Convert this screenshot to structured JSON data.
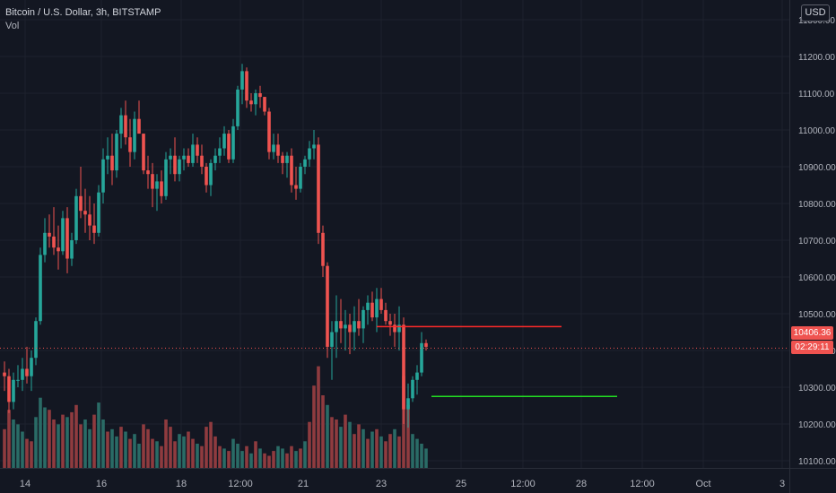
{
  "header": {
    "title": "Bitcoin / U.S. Dollar, 3h, BITSTAMP",
    "volume_label": "Vol",
    "currency": "USD"
  },
  "price_axis": {
    "current_price": "10406.36",
    "countdown": "02:29:11",
    "tag_color": "#ef5350"
  },
  "colors": {
    "background": "#131722",
    "grid": "#1e222d",
    "up": "#26a69a",
    "down": "#ef5350",
    "volume_up": "#2a6b66",
    "volume_down": "#8f3b3f",
    "resistance_line": "#ff2a2a",
    "support_line": "#22dd22"
  },
  "chart_data": {
    "type": "candlestick",
    "title": "Bitcoin / U.S. Dollar, 3h, BITSTAMP",
    "x_ticks": [
      "14",
      "16",
      "18",
      "12:00",
      "21",
      "23",
      "25",
      "12:00",
      "28",
      "12:00",
      "Oct",
      "3"
    ],
    "y_ticks": [
      "11300.00",
      "11200.00",
      "11100.00",
      "11000.00",
      "10900.00",
      "10800.00",
      "10700.00",
      "10600.00",
      "10500.00",
      "10400.00",
      "10300.00",
      "10200.00",
      "10100.00"
    ],
    "ylim": [
      10030,
      11310
    ],
    "candles": [
      [
        10340,
        10370,
        10290,
        10330
      ],
      [
        10330,
        10350,
        10230,
        10260
      ],
      [
        10260,
        10340,
        10240,
        10320
      ],
      [
        10320,
        10360,
        10300,
        10320
      ],
      [
        10320,
        10380,
        10290,
        10350
      ],
      [
        10350,
        10410,
        10310,
        10330
      ],
      [
        10330,
        10400,
        10290,
        10380
      ],
      [
        10380,
        10490,
        10360,
        10480
      ],
      [
        10480,
        10680,
        10470,
        10660
      ],
      [
        10660,
        10760,
        10640,
        10720
      ],
      [
        10720,
        10770,
        10680,
        10710
      ],
      [
        10710,
        10790,
        10660,
        10680
      ],
      [
        10680,
        10740,
        10620,
        10670
      ],
      [
        10670,
        10780,
        10660,
        10760
      ],
      [
        10760,
        10790,
        10610,
        10650
      ],
      [
        10650,
        10720,
        10630,
        10700
      ],
      [
        10700,
        10840,
        10690,
        10820
      ],
      [
        10820,
        10900,
        10760,
        10780
      ],
      [
        10780,
        10840,
        10720,
        10770
      ],
      [
        10770,
        10820,
        10700,
        10740
      ],
      [
        10740,
        10800,
        10690,
        10720
      ],
      [
        10720,
        10850,
        10710,
        10830
      ],
      [
        10830,
        10950,
        10800,
        10920
      ],
      [
        10920,
        10980,
        10880,
        10930
      ],
      [
        10930,
        10990,
        10850,
        10890
      ],
      [
        10890,
        11000,
        10870,
        10990
      ],
      [
        10990,
        11060,
        10950,
        11040
      ],
      [
        11040,
        11080,
        10960,
        10980
      ],
      [
        10980,
        11030,
        10900,
        10940
      ],
      [
        10940,
        11050,
        10920,
        11030
      ],
      [
        11030,
        11080,
        11000,
        10990
      ],
      [
        10990,
        10990,
        10880,
        10890
      ],
      [
        10890,
        10930,
        10840,
        10880
      ],
      [
        10880,
        10910,
        10790,
        10840
      ],
      [
        10840,
        10880,
        10780,
        10860
      ],
      [
        10860,
        10890,
        10800,
        10820
      ],
      [
        10820,
        10940,
        10810,
        10920
      ],
      [
        10920,
        10950,
        10880,
        10930
      ],
      [
        10930,
        10980,
        10860,
        10880
      ],
      [
        10880,
        10930,
        10860,
        10920
      ],
      [
        10920,
        10950,
        10890,
        10930
      ],
      [
        10930,
        10950,
        10900,
        10910
      ],
      [
        10910,
        10990,
        10900,
        10960
      ],
      [
        10960,
        10980,
        10910,
        10930
      ],
      [
        10930,
        10960,
        10880,
        10900
      ],
      [
        10900,
        10910,
        10830,
        10850
      ],
      [
        10850,
        10920,
        10820,
        10910
      ],
      [
        10910,
        10950,
        10890,
        10930
      ],
      [
        10930,
        10980,
        10910,
        10950
      ],
      [
        10950,
        11010,
        10930,
        10990
      ],
      [
        10990,
        11000,
        10910,
        10920
      ],
      [
        10920,
        11030,
        10910,
        11010
      ],
      [
        11010,
        11120,
        11000,
        11110
      ],
      [
        11110,
        11180,
        11070,
        11160
      ],
      [
        11160,
        11170,
        11060,
        11080
      ],
      [
        11080,
        11100,
        11050,
        11070
      ],
      [
        11070,
        11110,
        11040,
        11100
      ],
      [
        11100,
        11120,
        11060,
        11090
      ],
      [
        11090,
        11090,
        11040,
        11050
      ],
      [
        11050,
        11060,
        10920,
        10940
      ],
      [
        10940,
        10990,
        10920,
        10960
      ],
      [
        10960,
        10990,
        10910,
        10930
      ],
      [
        10930,
        10940,
        10880,
        10910
      ],
      [
        10910,
        10940,
        10870,
        10930
      ],
      [
        10930,
        10950,
        10830,
        10850
      ],
      [
        10850,
        10900,
        10810,
        10840
      ],
      [
        10840,
        10910,
        10830,
        10900
      ],
      [
        10900,
        10930,
        10880,
        10920
      ],
      [
        10920,
        10970,
        10900,
        10950
      ],
      [
        10950,
        11000,
        10920,
        10960
      ],
      [
        10960,
        10980,
        10690,
        10720
      ],
      [
        10720,
        10740,
        10600,
        10630
      ],
      [
        10630,
        10640,
        10380,
        10410
      ],
      [
        10410,
        10480,
        10320,
        10450
      ],
      [
        10450,
        10550,
        10380,
        10480
      ],
      [
        10480,
        10540,
        10420,
        10460
      ],
      [
        10460,
        10510,
        10400,
        10470
      ],
      [
        10470,
        10500,
        10390,
        10450
      ],
      [
        10450,
        10520,
        10400,
        10480
      ],
      [
        10480,
        10540,
        10440,
        10460
      ],
      [
        10460,
        10520,
        10420,
        10510
      ],
      [
        10510,
        10550,
        10470,
        10530
      ],
      [
        10530,
        10560,
        10480,
        10490
      ],
      [
        10490,
        10570,
        10450,
        10540
      ],
      [
        10540,
        10570,
        10500,
        10510
      ],
      [
        10510,
        10530,
        10470,
        10480
      ],
      [
        10480,
        10500,
        10440,
        10470
      ],
      [
        10470,
        10500,
        10410,
        10450
      ],
      [
        10450,
        10520,
        10400,
        10470
      ],
      [
        10470,
        10490,
        10200,
        10240
      ],
      [
        10240,
        10310,
        10190,
        10270
      ],
      [
        10270,
        10330,
        10260,
        10320
      ],
      [
        10320,
        10360,
        10280,
        10340
      ],
      [
        10340,
        10450,
        10330,
        10420
      ],
      [
        10420,
        10430,
        10400,
        10410
      ]
    ],
    "volumes": [
      [
        160,
        0
      ],
      [
        240,
        0
      ],
      [
        200,
        1
      ],
      [
        180,
        1
      ],
      [
        150,
        1
      ],
      [
        120,
        0
      ],
      [
        110,
        0
      ],
      [
        210,
        1
      ],
      [
        290,
        1
      ],
      [
        250,
        1
      ],
      [
        240,
        0
      ],
      [
        200,
        0
      ],
      [
        180,
        1
      ],
      [
        220,
        0
      ],
      [
        210,
        1
      ],
      [
        230,
        0
      ],
      [
        260,
        0
      ],
      [
        180,
        0
      ],
      [
        200,
        1
      ],
      [
        160,
        1
      ],
      [
        220,
        0
      ],
      [
        270,
        1
      ],
      [
        200,
        1
      ],
      [
        150,
        0
      ],
      [
        160,
        1
      ],
      [
        130,
        1
      ],
      [
        170,
        0
      ],
      [
        150,
        1
      ],
      [
        120,
        0
      ],
      [
        140,
        1
      ],
      [
        100,
        1
      ],
      [
        180,
        0
      ],
      [
        160,
        0
      ],
      [
        120,
        0
      ],
      [
        110,
        1
      ],
      [
        90,
        0
      ],
      [
        200,
        0
      ],
      [
        170,
        0
      ],
      [
        110,
        0
      ],
      [
        140,
        1
      ],
      [
        130,
        1
      ],
      [
        150,
        0
      ],
      [
        120,
        0
      ],
      [
        100,
        1
      ],
      [
        90,
        0
      ],
      [
        170,
        0
      ],
      [
        190,
        0
      ],
      [
        130,
        0
      ],
      [
        90,
        0
      ],
      [
        80,
        1
      ],
      [
        70,
        0
      ],
      [
        120,
        1
      ],
      [
        100,
        1
      ],
      [
        70,
        1
      ],
      [
        90,
        0
      ],
      [
        60,
        1
      ],
      [
        110,
        0
      ],
      [
        80,
        1
      ],
      [
        60,
        0
      ],
      [
        50,
        0
      ],
      [
        70,
        0
      ],
      [
        90,
        1
      ],
      [
        80,
        1
      ],
      [
        60,
        0
      ],
      [
        90,
        0
      ],
      [
        70,
        1
      ],
      [
        80,
        0
      ],
      [
        110,
        1
      ],
      [
        190,
        0
      ],
      [
        340,
        0
      ],
      [
        420,
        0
      ],
      [
        300,
        0
      ],
      [
        260,
        1
      ],
      [
        210,
        0
      ],
      [
        200,
        0
      ],
      [
        170,
        1
      ],
      [
        220,
        0
      ],
      [
        190,
        1
      ],
      [
        140,
        0
      ],
      [
        180,
        0
      ],
      [
        160,
        1
      ],
      [
        120,
        0
      ],
      [
        150,
        1
      ],
      [
        160,
        0
      ],
      [
        130,
        1
      ],
      [
        110,
        0
      ],
      [
        140,
        0
      ],
      [
        160,
        1
      ],
      [
        130,
        0
      ],
      [
        380,
        0
      ],
      [
        260,
        0
      ],
      [
        140,
        1
      ],
      [
        120,
        1
      ],
      [
        100,
        1
      ],
      [
        80,
        1
      ]
    ],
    "horizontal_lines": [
      {
        "y": 10465,
        "x_start": 60,
        "x_end": 100
      },
      {
        "y": 10275,
        "x_start": 66,
        "x_end": 110
      }
    ],
    "current_price": 10406.36
  }
}
